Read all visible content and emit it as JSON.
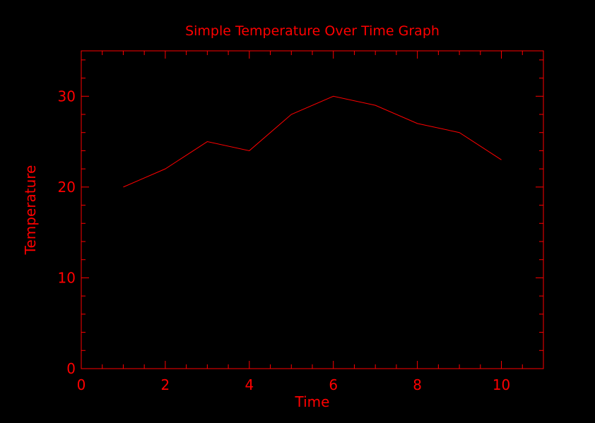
{
  "colors": {
    "background": "#000000",
    "foreground": "#ff0000"
  },
  "chart_data": {
    "type": "line",
    "title": "Simple Temperature Over Time Graph",
    "xlabel": "Time",
    "ylabel": "Temperature",
    "xlim": [
      0,
      11
    ],
    "ylim": [
      0,
      35
    ],
    "x_ticks": [
      0,
      2,
      4,
      6,
      8,
      10
    ],
    "y_ticks": [
      0,
      10,
      20,
      30
    ],
    "x_minor_step": 0.5,
    "y_minor_step": 2,
    "grid": false,
    "legend": "none",
    "series": [
      {
        "x": [
          1,
          2,
          3,
          4,
          5,
          6,
          7,
          8,
          9,
          10
        ],
        "values": [
          20,
          22,
          25,
          24,
          28,
          30,
          29,
          27,
          26,
          23
        ]
      }
    ]
  }
}
